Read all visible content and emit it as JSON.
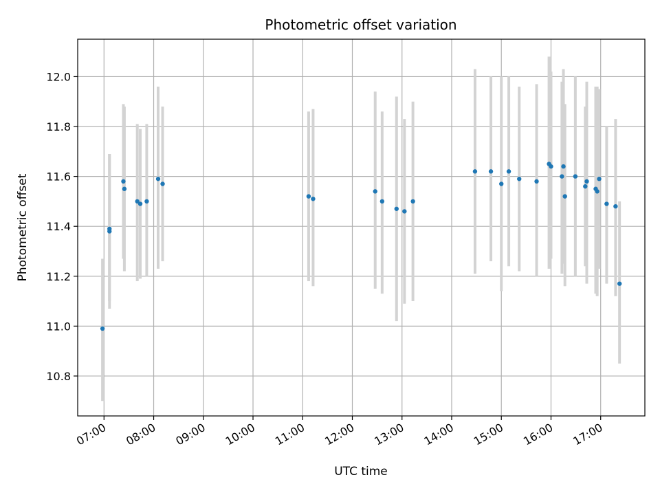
{
  "chart_data": {
    "type": "scatter",
    "title": "Photometric offset variation",
    "xlabel": "UTC time",
    "ylabel": "Photometric offset",
    "x_unit": "hours UTC",
    "xlim": [
      6.47,
      17.89
    ],
    "ylim": [
      10.64,
      12.15
    ],
    "x_ticks": [
      {
        "value": 7,
        "label": "07:00"
      },
      {
        "value": 8,
        "label": "08:00"
      },
      {
        "value": 9,
        "label": "09:00"
      },
      {
        "value": 10,
        "label": "10:00"
      },
      {
        "value": 11,
        "label": "11:00"
      },
      {
        "value": 12,
        "label": "12:00"
      },
      {
        "value": 13,
        "label": "13:00"
      },
      {
        "value": 14,
        "label": "14:00"
      },
      {
        "value": 15,
        "label": "15:00"
      },
      {
        "value": 16,
        "label": "16:00"
      },
      {
        "value": 17,
        "label": "17:00"
      }
    ],
    "y_ticks": [
      {
        "value": 10.8,
        "label": "10.8"
      },
      {
        "value": 11.0,
        "label": "11.0"
      },
      {
        "value": 11.2,
        "label": "11.2"
      },
      {
        "value": 11.4,
        "label": "11.4"
      },
      {
        "value": 11.6,
        "label": "11.6"
      },
      {
        "value": 11.8,
        "label": "11.8"
      },
      {
        "value": 12.0,
        "label": "12.0"
      }
    ],
    "grid": true,
    "marker_color": "#1f77b4",
    "errorbar_color": "#d3d3d3",
    "points": [
      {
        "x": 6.97,
        "y": 10.99,
        "low": 10.7,
        "high": 11.27
      },
      {
        "x": 7.11,
        "y": 11.38,
        "low": 11.07,
        "high": 11.69
      },
      {
        "x": 7.11,
        "y": 11.39,
        "low": 11.1,
        "high": 11.69
      },
      {
        "x": 7.39,
        "y": 11.58,
        "low": 11.27,
        "high": 11.89
      },
      {
        "x": 7.41,
        "y": 11.55,
        "low": 11.22,
        "high": 11.88
      },
      {
        "x": 7.67,
        "y": 11.5,
        "low": 11.18,
        "high": 11.81
      },
      {
        "x": 7.73,
        "y": 11.49,
        "low": 11.19,
        "high": 11.79
      },
      {
        "x": 7.86,
        "y": 11.5,
        "low": 11.2,
        "high": 11.81
      },
      {
        "x": 8.09,
        "y": 11.59,
        "low": 11.23,
        "high": 11.96
      },
      {
        "x": 8.18,
        "y": 11.57,
        "low": 11.26,
        "high": 11.88
      },
      {
        "x": 11.12,
        "y": 11.52,
        "low": 11.18,
        "high": 11.86
      },
      {
        "x": 11.21,
        "y": 11.51,
        "low": 11.16,
        "high": 11.87
      },
      {
        "x": 12.46,
        "y": 11.54,
        "low": 11.15,
        "high": 11.94
      },
      {
        "x": 12.6,
        "y": 11.5,
        "low": 11.13,
        "high": 11.86
      },
      {
        "x": 12.89,
        "y": 11.47,
        "low": 11.02,
        "high": 11.92
      },
      {
        "x": 13.05,
        "y": 11.46,
        "low": 11.09,
        "high": 11.83
      },
      {
        "x": 13.22,
        "y": 11.5,
        "low": 11.1,
        "high": 11.9
      },
      {
        "x": 14.47,
        "y": 11.62,
        "low": 11.21,
        "high": 12.03
      },
      {
        "x": 14.79,
        "y": 11.62,
        "low": 11.26,
        "high": 12.0
      },
      {
        "x": 15.0,
        "y": 11.57,
        "low": 11.14,
        "high": 12.0
      },
      {
        "x": 15.15,
        "y": 11.62,
        "low": 11.24,
        "high": 12.0
      },
      {
        "x": 15.36,
        "y": 11.59,
        "low": 11.22,
        "high": 11.96
      },
      {
        "x": 15.71,
        "y": 11.58,
        "low": 11.2,
        "high": 11.97
      },
      {
        "x": 15.96,
        "y": 11.65,
        "low": 11.23,
        "high": 12.08
      },
      {
        "x": 16.0,
        "y": 11.64,
        "low": 11.27,
        "high": 12.02
      },
      {
        "x": 16.22,
        "y": 11.6,
        "low": 11.21,
        "high": 11.98
      },
      {
        "x": 16.25,
        "y": 11.64,
        "low": 11.25,
        "high": 12.03
      },
      {
        "x": 16.28,
        "y": 11.52,
        "low": 11.16,
        "high": 11.89
      },
      {
        "x": 16.49,
        "y": 11.6,
        "low": 11.2,
        "high": 12.0
      },
      {
        "x": 16.69,
        "y": 11.56,
        "low": 11.24,
        "high": 11.88
      },
      {
        "x": 16.72,
        "y": 11.58,
        "low": 11.17,
        "high": 11.98
      },
      {
        "x": 16.9,
        "y": 11.55,
        "low": 11.13,
        "high": 11.96
      },
      {
        "x": 16.93,
        "y": 11.54,
        "low": 11.12,
        "high": 11.96
      },
      {
        "x": 16.97,
        "y": 11.59,
        "low": 11.23,
        "high": 11.95
      },
      {
        "x": 17.12,
        "y": 11.49,
        "low": 11.17,
        "high": 11.8
      },
      {
        "x": 17.3,
        "y": 11.48,
        "low": 11.12,
        "high": 11.83
      },
      {
        "x": 17.38,
        "y": 11.17,
        "low": 10.85,
        "high": 11.5
      }
    ]
  }
}
